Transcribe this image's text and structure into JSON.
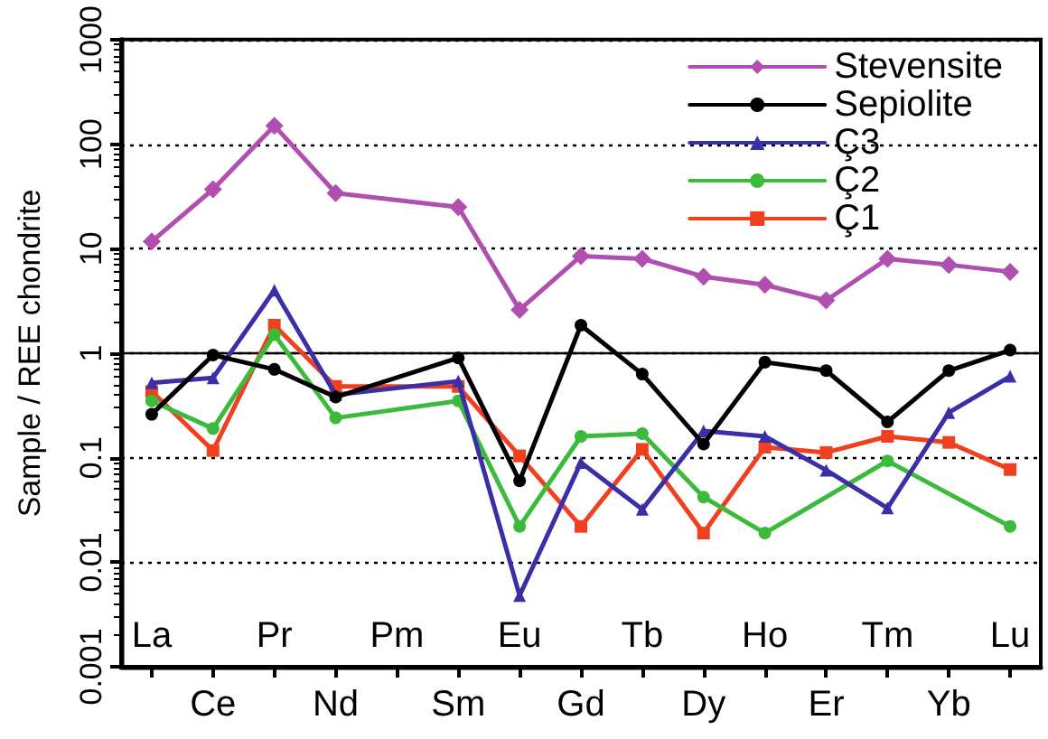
{
  "chart_data": {
    "type": "line",
    "ylabel": "Sample / REE chondrite",
    "categories": [
      "La",
      "Ce",
      "Pr",
      "Nd",
      "Pm",
      "Sm",
      "Eu",
      "Gd",
      "Tb",
      "Dy",
      "Ho",
      "Er",
      "Tm",
      "Yb",
      "Lu"
    ],
    "series": [
      {
        "name": "Stevensite",
        "color": "#b04fb0",
        "marker": "diamond",
        "values": [
          11.7,
          37,
          150,
          34,
          null,
          25,
          2.6,
          8.5,
          8,
          5.4,
          4.5,
          3.2,
          8,
          7,
          6
        ]
      },
      {
        "name": "Sepiolite",
        "color": "#000000",
        "marker": "circle",
        "values": [
          0.26,
          0.96,
          0.7,
          0.38,
          null,
          0.9,
          0.06,
          1.85,
          0.63,
          0.135,
          0.82,
          0.68,
          0.22,
          0.68,
          1.07
        ]
      },
      {
        "name": "Ç3",
        "color": "#3b2fa8",
        "marker": "triangle",
        "values": [
          0.52,
          0.58,
          4,
          0.4,
          null,
          0.54,
          0.0048,
          0.09,
          0.032,
          0.18,
          0.16,
          0.076,
          0.033,
          0.27,
          0.6
        ]
      },
      {
        "name": "Ç2",
        "color": "#3cba3c",
        "marker": "circle",
        "values": [
          0.35,
          0.19,
          1.5,
          0.24,
          null,
          0.35,
          0.022,
          0.16,
          0.17,
          0.042,
          0.019,
          null,
          0.093,
          null,
          0.022
        ]
      },
      {
        "name": "Ç1",
        "color": "#f04020",
        "marker": "square",
        "values": [
          0.43,
          0.117,
          1.85,
          0.48,
          null,
          0.48,
          0.104,
          0.022,
          0.12,
          0.019,
          0.126,
          0.112,
          0.16,
          0.14,
          0.077
        ]
      }
    ],
    "log": "y",
    "ylim": [
      0.001,
      1000
    ],
    "yticks": [
      0.001,
      0.01,
      0.1,
      1,
      10,
      100,
      1000
    ],
    "grid": "y",
    "legend": "top right",
    "ref_lines": [
      {
        "axis": "y",
        "value": 1
      }
    ]
  }
}
